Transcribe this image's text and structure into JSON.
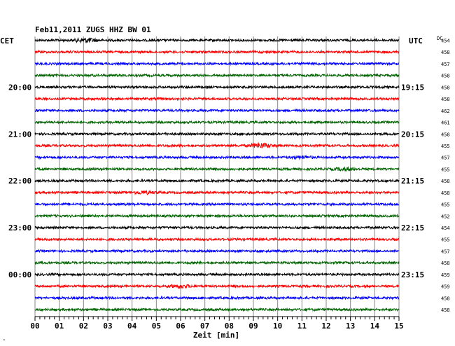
{
  "chart_data": {
    "type": "line",
    "title": "Feb11,2011   ZUGS HHZ BW 01",
    "left_label": "CET",
    "right_label": "UTC",
    "dc_label": "DC",
    "xlabel": "Zeit [min]",
    "xlim": [
      0,
      15
    ],
    "x_ticks": [
      "00",
      "01",
      "02",
      "03",
      "04",
      "05",
      "06",
      "07",
      "08",
      "09",
      "10",
      "11",
      "12",
      "13",
      "14",
      "15"
    ],
    "grid": true,
    "trace_colors": [
      "#000000",
      "#ff0000",
      "#0000ff",
      "#006400"
    ],
    "left_hour_labels": [
      {
        "trace": 4,
        "label": "20:00"
      },
      {
        "trace": 8,
        "label": "21:00"
      },
      {
        "trace": 12,
        "label": "22:00"
      },
      {
        "trace": 16,
        "label": "23:00"
      },
      {
        "trace": 20,
        "label": "00:00"
      }
    ],
    "right_hour_labels": [
      {
        "trace": 4,
        "label": "19:15"
      },
      {
        "trace": 8,
        "label": "20:15"
      },
      {
        "trace": 12,
        "label": "21:15"
      },
      {
        "trace": 16,
        "label": "22:15"
      },
      {
        "trace": 20,
        "label": "23:15"
      }
    ],
    "dc_values": [
      "454",
      "458",
      "457",
      "458",
      "458",
      "458",
      "462",
      "461",
      "458",
      "455",
      "457",
      "455",
      "458",
      "458",
      "455",
      "452",
      "454",
      "455",
      "457",
      "458",
      "459",
      "459",
      "458",
      "458"
    ],
    "events": [
      {
        "trace": 0,
        "minute": 2.1,
        "strength": 2.6
      },
      {
        "trace": 9,
        "minute": 9.3,
        "strength": 3.0
      },
      {
        "trace": 10,
        "minute": 11.0,
        "strength": 1.4
      },
      {
        "trace": 11,
        "minute": 12.8,
        "strength": 1.6
      },
      {
        "trace": 13,
        "minute": 4.5,
        "strength": 1.5
      },
      {
        "trace": 21,
        "minute": 6.0,
        "strength": 1.8
      }
    ]
  },
  "corner_mark": "^"
}
